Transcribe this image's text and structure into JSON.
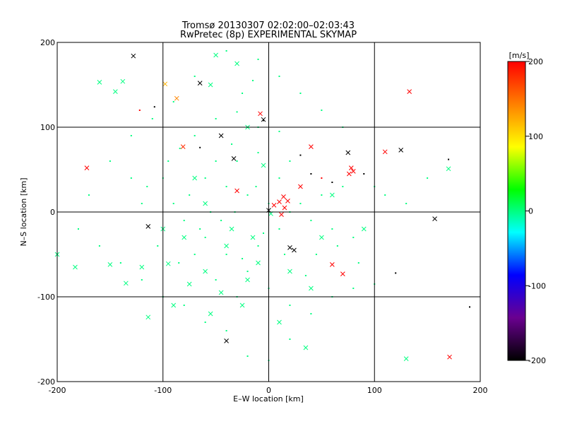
{
  "chart_data": {
    "type": "scatter",
    "title": "Tromsø 20130307 02:02:00–02:03:43",
    "subtitle": "RwPretec (8p) EXPERIMENTAL SKYMAP",
    "xlabel": "E–W location [km]",
    "ylabel": "N–S location [km]",
    "xlim": [
      -200,
      200
    ],
    "ylim": [
      -200,
      200
    ],
    "xticks": [
      -200,
      -100,
      0,
      100,
      200
    ],
    "yticks": [
      -200,
      -100,
      0,
      100,
      200
    ],
    "grid": true,
    "colorbar": {
      "label": "[m/s]",
      "range": [
        -200,
        200
      ],
      "ticks": [
        200,
        100,
        0,
        -100,
        -200
      ],
      "placement": "right",
      "colors": [
        "#000000",
        "#6a0090",
        "#0000ff",
        "#00ffff",
        "#00ff00",
        "#ffff00",
        "#ff8000",
        "#ff0000"
      ]
    },
    "series": [
      {
        "marker": "x",
        "points": [
          [
            -128,
            184,
            -200
          ],
          [
            -160,
            153,
            0
          ],
          [
            -145,
            142,
            0
          ],
          [
            -138,
            154,
            0
          ],
          [
            -98,
            151,
            120
          ],
          [
            -65,
            152,
            -200
          ],
          [
            -87,
            134,
            140
          ],
          [
            -81,
            77,
            180
          ],
          [
            -45,
            90,
            -200
          ],
          [
            -8,
            116,
            200
          ],
          [
            -5,
            109,
            -200
          ],
          [
            -33,
            63,
            -200
          ],
          [
            -114,
            -17,
            -200
          ],
          [
            -172,
            52,
            200
          ],
          [
            -183,
            -65,
            0
          ],
          [
            -150,
            -62,
            0
          ],
          [
            -135,
            -84,
            0
          ],
          [
            -120,
            -65,
            0
          ],
          [
            -114,
            -124,
            0
          ],
          [
            -95,
            -61,
            0
          ],
          [
            -30,
            25,
            200
          ],
          [
            0,
            2,
            -200
          ],
          [
            2,
            -2,
            0
          ],
          [
            5,
            8,
            200
          ],
          [
            10,
            12,
            200
          ],
          [
            14,
            18,
            200
          ],
          [
            18,
            13,
            200
          ],
          [
            15,
            5,
            200
          ],
          [
            12,
            -3,
            200
          ],
          [
            20,
            -42,
            -200
          ],
          [
            24,
            -45,
            -200
          ],
          [
            30,
            30,
            200
          ],
          [
            40,
            77,
            200
          ],
          [
            60,
            -62,
            200
          ],
          [
            75,
            70,
            -200
          ],
          [
            76,
            45,
            200
          ],
          [
            78,
            52,
            200
          ],
          [
            80,
            48,
            200
          ],
          [
            70,
            -73,
            200
          ],
          [
            110,
            71,
            200
          ],
          [
            125,
            73,
            -200
          ],
          [
            133,
            142,
            200
          ],
          [
            157,
            -8,
            -200
          ],
          [
            130,
            -173,
            0
          ],
          [
            171,
            -171,
            200
          ],
          [
            170,
            51,
            0
          ],
          [
            -40,
            -152,
            -200
          ],
          [
            -55,
            -120,
            0
          ],
          [
            -25,
            -110,
            0
          ],
          [
            10,
            -130,
            0
          ],
          [
            35,
            -160,
            0
          ],
          [
            -200,
            -50,
            0
          ],
          [
            -70,
            40,
            0
          ],
          [
            -10,
            -60,
            0
          ],
          [
            -40,
            -40,
            0
          ],
          [
            -80,
            -30,
            0
          ],
          [
            -20,
            -80,
            0
          ],
          [
            -60,
            -70,
            0
          ],
          [
            -5,
            55,
            0
          ],
          [
            -50,
            185,
            0
          ],
          [
            -30,
            175,
            0
          ],
          [
            -55,
            150,
            0
          ],
          [
            -20,
            100,
            0
          ],
          [
            -60,
            10,
            0
          ],
          [
            -45,
            -95,
            0
          ],
          [
            50,
            -30,
            0
          ],
          [
            90,
            -20,
            0
          ],
          [
            60,
            20,
            0
          ],
          [
            -100,
            -20,
            0
          ],
          [
            -90,
            -110,
            0
          ],
          [
            40,
            -90,
            0
          ],
          [
            20,
            -70,
            0
          ],
          [
            -35,
            -20,
            0
          ],
          [
            -75,
            -85,
            0
          ],
          [
            -15,
            -30,
            0
          ]
        ]
      },
      {
        "marker": "dot",
        "points": [
          [
            -122,
            120,
            200
          ],
          [
            -108,
            124,
            -200
          ],
          [
            -84,
            75,
            0
          ],
          [
            -65,
            76,
            -200
          ],
          [
            -50,
            110,
            0
          ],
          [
            -30,
            118,
            0
          ],
          [
            -10,
            100,
            0
          ],
          [
            -5,
            108,
            -200
          ],
          [
            10,
            95,
            0
          ],
          [
            20,
            60,
            0
          ],
          [
            30,
            67,
            -200
          ],
          [
            40,
            45,
            -200
          ],
          [
            50,
            40,
            200
          ],
          [
            60,
            35,
            -200
          ],
          [
            70,
            30,
            0
          ],
          [
            90,
            45,
            -200
          ],
          [
            100,
            30,
            0
          ],
          [
            110,
            20,
            0
          ],
          [
            130,
            10,
            0
          ],
          [
            150,
            40,
            0
          ],
          [
            170,
            62,
            -200
          ],
          [
            190,
            -112,
            -200
          ],
          [
            120,
            -72,
            -200
          ],
          [
            100,
            -85,
            0
          ],
          [
            80,
            -90,
            0
          ],
          [
            60,
            -100,
            0
          ],
          [
            40,
            -120,
            0
          ],
          [
            20,
            -150,
            0
          ],
          [
            0,
            -175,
            0
          ],
          [
            -20,
            -170,
            0
          ],
          [
            -40,
            -140,
            0
          ],
          [
            -60,
            -130,
            0
          ],
          [
            -80,
            -110,
            0
          ],
          [
            -100,
            -100,
            0
          ],
          [
            -120,
            -80,
            0
          ],
          [
            -140,
            -60,
            0
          ],
          [
            -160,
            -40,
            0
          ],
          [
            -180,
            -20,
            0
          ],
          [
            -170,
            20,
            0
          ],
          [
            -150,
            60,
            0
          ],
          [
            -130,
            90,
            0
          ],
          [
            -110,
            110,
            0
          ],
          [
            -90,
            130,
            0
          ],
          [
            -70,
            160,
            0
          ],
          [
            -40,
            190,
            0
          ],
          [
            -10,
            180,
            0
          ],
          [
            10,
            160,
            0
          ],
          [
            30,
            140,
            0
          ],
          [
            50,
            120,
            0
          ],
          [
            70,
            100,
            0
          ],
          [
            -60,
            40,
            0
          ],
          [
            -40,
            30,
            0
          ],
          [
            -20,
            20,
            0
          ],
          [
            0,
            10,
            0
          ],
          [
            20,
            0,
            0
          ],
          [
            40,
            -10,
            0
          ],
          [
            60,
            -20,
            0
          ],
          [
            80,
            -30,
            0
          ],
          [
            -80,
            -10,
            0
          ],
          [
            -60,
            -30,
            0
          ],
          [
            -40,
            -50,
            0
          ],
          [
            -20,
            -70,
            0
          ],
          [
            0,
            -90,
            0
          ],
          [
            20,
            -110,
            0
          ],
          [
            -90,
            10,
            0
          ],
          [
            -70,
            -50,
            0
          ],
          [
            -50,
            -80,
            0
          ],
          [
            -30,
            -100,
            0
          ],
          [
            -10,
            -40,
            0
          ],
          [
            10,
            -20,
            0
          ],
          [
            30,
            10,
            0
          ],
          [
            50,
            20,
            0
          ],
          [
            -100,
            40,
            0
          ],
          [
            -120,
            10,
            0
          ],
          [
            -30,
            60,
            0
          ],
          [
            -10,
            70,
            0
          ],
          [
            10,
            40,
            0
          ],
          [
            -50,
            60,
            0
          ],
          [
            -70,
            90,
            0
          ],
          [
            -25,
            140,
            0
          ],
          [
            -15,
            155,
            0
          ],
          [
            -35,
            80,
            0
          ],
          [
            45,
            -50,
            0
          ],
          [
            65,
            -40,
            0
          ],
          [
            85,
            -60,
            0
          ],
          [
            -65,
            -20,
            0
          ],
          [
            -85,
            -60,
            0
          ],
          [
            -105,
            -40,
            0
          ],
          [
            -45,
            -10,
            0
          ],
          [
            -25,
            -55,
            0
          ],
          [
            -5,
            -25,
            0
          ],
          [
            15,
            -50,
            0
          ],
          [
            35,
            -75,
            0
          ],
          [
            -55,
            0,
            0
          ],
          [
            -75,
            20,
            0
          ],
          [
            -95,
            60,
            0
          ],
          [
            -115,
            30,
            0
          ],
          [
            -130,
            40,
            0
          ],
          [
            -12,
            30,
            0
          ],
          [
            -32,
            0,
            0
          ]
        ]
      }
    ]
  }
}
